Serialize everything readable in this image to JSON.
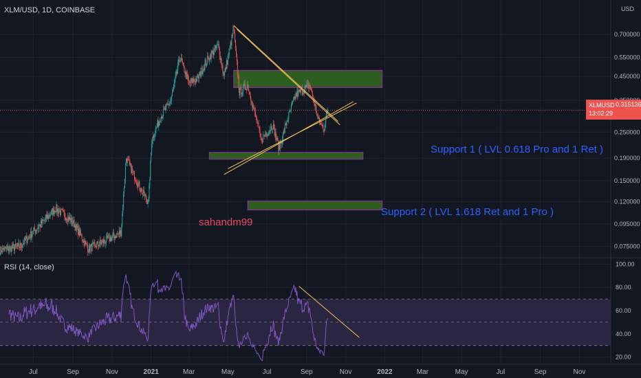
{
  "header": {
    "symbol": "XLM/USD, 1D, COINBASE",
    "currency": "USD"
  },
  "price_tag": {
    "symbol": "XLMUSD",
    "price": "0.315136",
    "countdown": "13:02:29"
  },
  "rsi": {
    "label": "RSI (14, close)"
  },
  "annotations": {
    "support1": "Support 1 ( LVL 0.618 Pro and 1 Ret )",
    "support2": "Support 2 ( LVL 1.618 Ret and 1 Pro )",
    "watermark": "sahandm99"
  },
  "colors": {
    "background": "#131722",
    "up": "#26a69a",
    "down": "#ef5350",
    "zone_fill": "#2e5e1f",
    "zone_border": "#9c27b0",
    "trendline": "#f5c35a",
    "rsi_line": "#7e57c2",
    "rsi_band": "#2a2540",
    "annotation": "#2962ff"
  },
  "chart_data": [
    {
      "type": "candlestick",
      "title": "XLM/USD, 1D, COINBASE",
      "scale": "log",
      "y_ticks": [
        0.075,
        0.095,
        0.12,
        0.15,
        0.19,
        0.25,
        0.35,
        0.45,
        0.55,
        0.7
      ],
      "y_tick_labels": [
        "0.075000",
        "0.095000",
        "0.120000",
        "0.150000",
        "0.190000",
        "0.250000",
        "0.350000",
        "0.450000",
        "0.550000",
        "0.700000"
      ],
      "x_tick_labels": [
        "Jul",
        "Sep",
        "Nov",
        "2021",
        "Mar",
        "May",
        "Jul",
        "Sep",
        "Nov",
        "2022",
        "Mar",
        "May",
        "Jul",
        "Sep",
        "Nov"
      ],
      "x_range": [
        "2020-05-10",
        "2022-12-20"
      ],
      "ylim": [
        0.067,
        0.95
      ],
      "last_price": 0.315136,
      "close_anchors": [
        [
          "2020-05-10",
          0.072
        ],
        [
          "2020-06-10",
          0.075
        ],
        [
          "2020-07-10",
          0.093
        ],
        [
          "2020-08-05",
          0.112
        ],
        [
          "2020-09-01",
          0.097
        ],
        [
          "2020-09-25",
          0.073
        ],
        [
          "2020-10-20",
          0.079
        ],
        [
          "2020-11-15",
          0.087
        ],
        [
          "2020-11-23",
          0.19
        ],
        [
          "2020-12-05",
          0.16
        ],
        [
          "2020-12-20",
          0.13
        ],
        [
          "2020-12-28",
          0.12
        ],
        [
          "2021-01-02",
          0.23
        ],
        [
          "2021-01-15",
          0.29
        ],
        [
          "2021-02-01",
          0.35
        ],
        [
          "2021-02-15",
          0.55
        ],
        [
          "2021-03-01",
          0.42
        ],
        [
          "2021-03-15",
          0.44
        ],
        [
          "2021-04-01",
          0.55
        ],
        [
          "2021-04-16",
          0.62
        ],
        [
          "2021-04-25",
          0.45
        ],
        [
          "2021-05-10",
          0.74
        ],
        [
          "2021-05-19",
          0.38
        ],
        [
          "2021-06-01",
          0.41
        ],
        [
          "2021-06-22",
          0.23
        ],
        [
          "2021-07-10",
          0.27
        ],
        [
          "2021-07-20",
          0.21
        ],
        [
          "2021-08-01",
          0.28
        ],
        [
          "2021-08-15",
          0.37
        ],
        [
          "2021-09-06",
          0.41
        ],
        [
          "2021-09-20",
          0.28
        ],
        [
          "2021-09-28",
          0.26
        ],
        [
          "2021-10-04",
          0.315
        ]
      ],
      "zones": [
        {
          "from": "2021-05-10",
          "to": "2021-12-28",
          "low": 0.4,
          "high": 0.48
        },
        {
          "from": "2021-04-02",
          "to": "2021-11-28",
          "low": 0.188,
          "high": 0.202
        },
        {
          "from": "2021-06-01",
          "to": "2021-12-28",
          "low": 0.11,
          "high": 0.121
        }
      ],
      "trendlines": [
        {
          "from": [
            "2021-05-10",
            0.77
          ],
          "to": [
            "2021-10-20",
            0.28
          ]
        },
        {
          "from": [
            "2021-05-15",
            0.74
          ],
          "to": [
            "2021-10-23",
            0.27
          ]
        },
        {
          "from": [
            "2021-04-25",
            0.16
          ],
          "to": [
            "2021-11-13",
            0.345
          ]
        },
        {
          "from": [
            "2021-05-01",
            0.17
          ],
          "to": [
            "2021-11-18",
            0.34
          ]
        }
      ]
    },
    {
      "type": "line",
      "title": "RSI (14, close)",
      "y_ticks": [
        20,
        40,
        60,
        80,
        100
      ],
      "y_tick_labels": [
        "20.00",
        "40.00",
        "60.00",
        "80.00",
        "100.00"
      ],
      "ylim": [
        15,
        105
      ],
      "bands": [
        30,
        50,
        70
      ],
      "trendline": {
        "from": [
          "2021-08-20",
          81
        ],
        "to": [
          "2021-11-22",
          37
        ]
      }
    }
  ]
}
